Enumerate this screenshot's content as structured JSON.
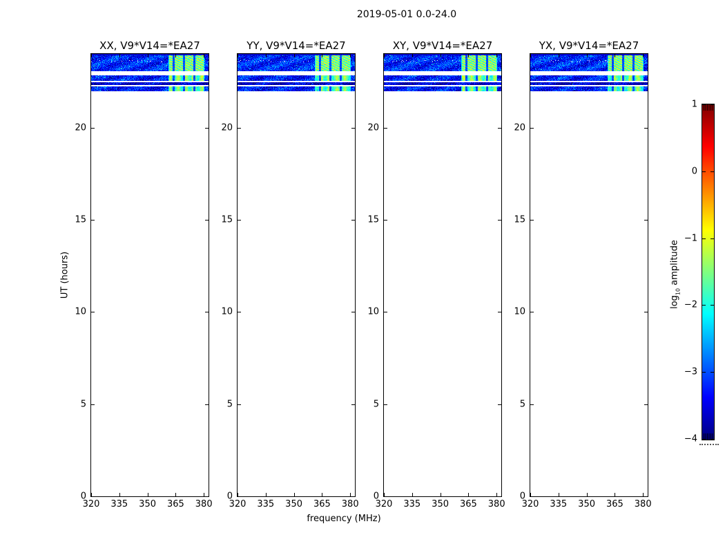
{
  "figure": {
    "title": "2019-05-01 0.0-24.0"
  },
  "axes": {
    "xlabel": "frequency (MHz)",
    "ylabel": "UT (hours)",
    "x_ticks": [
      320,
      335,
      350,
      365,
      380
    ],
    "y_ticks": [
      0,
      5,
      10,
      15,
      20
    ],
    "xlim": [
      320,
      382.5
    ],
    "ylim": [
      0,
      24
    ]
  },
  "panels": [
    {
      "title": "XX, V9*V14=*EA27",
      "seed": 11
    },
    {
      "title": "YY, V9*V14=*EA27",
      "seed": 37
    },
    {
      "title": "XY, V9*V14=*EA27",
      "seed": 59
    },
    {
      "title": "YX, V9*V14=*EA27",
      "seed": 83
    }
  ],
  "colorbar": {
    "label_log": "log",
    "label_sub": "10",
    "label_rest": " amplitude",
    "tick_labels": [
      "1",
      "0",
      "−1",
      "−2",
      "−3",
      "−4"
    ],
    "tick_values": [
      1,
      0,
      -1,
      -2,
      -3,
      -4
    ],
    "vmin": -4,
    "vmax": 1,
    "colormap": "jet"
  },
  "chart_data": {
    "type": "heatmap",
    "title": "2019-05-01 0.0-24.0",
    "subplot_titles": [
      "XX, V9*V14=*EA27",
      "YY, V9*V14=*EA27",
      "XY, V9*V14=*EA27",
      "YX, V9*V14=*EA27"
    ],
    "xlabel": "frequency (MHz)",
    "ylabel": "UT (hours)",
    "xlim": [
      320,
      382.5
    ],
    "ylim": [
      0,
      24
    ],
    "x_ticks": [
      320,
      335,
      350,
      365,
      380
    ],
    "y_ticks": [
      0,
      5,
      10,
      15,
      20
    ],
    "colorbar": {
      "label": "log10 amplitude",
      "range": [
        -4,
        1
      ],
      "ticks": [
        1,
        0,
        -1,
        -2,
        -3,
        -4
      ],
      "colormap": "jet"
    },
    "bands": [
      {
        "ut_range": [
          23.05,
          24.0
        ],
        "base_log_amp": -3.2,
        "bright_freq_range_mhz": [
          361.2,
          380.3
        ],
        "bright_log_amp": -1.5,
        "texture": "diagonal-streaks",
        "dark_top_edge": true
      },
      {
        "ut_range": [
          22.55,
          22.85
        ],
        "base_log_amp": -3.3,
        "bright_freq_range_mhz": [
          361.2,
          380.3
        ],
        "bright_log_amp": -1.6,
        "texture": "blocks",
        "dark_top_edge": false
      },
      {
        "ut_range": [
          22.33,
          22.46
        ],
        "base_log_amp": -3.6,
        "bright_freq_range_mhz": null,
        "bright_log_amp": null,
        "texture": "flat",
        "dark_top_edge": false
      },
      {
        "ut_range": [
          21.98,
          22.25
        ],
        "base_log_amp": -3.3,
        "bright_freq_range_mhz": [
          361.2,
          380.3
        ],
        "bright_log_amp": -1.7,
        "texture": "blocks",
        "dark_top_edge": false
      }
    ],
    "bright_block_separators_mhz": [
      363.8,
      369.4,
      374.9
    ],
    "blank_region_note": "UT 0 to ~21.98 contains no data (white)"
  }
}
